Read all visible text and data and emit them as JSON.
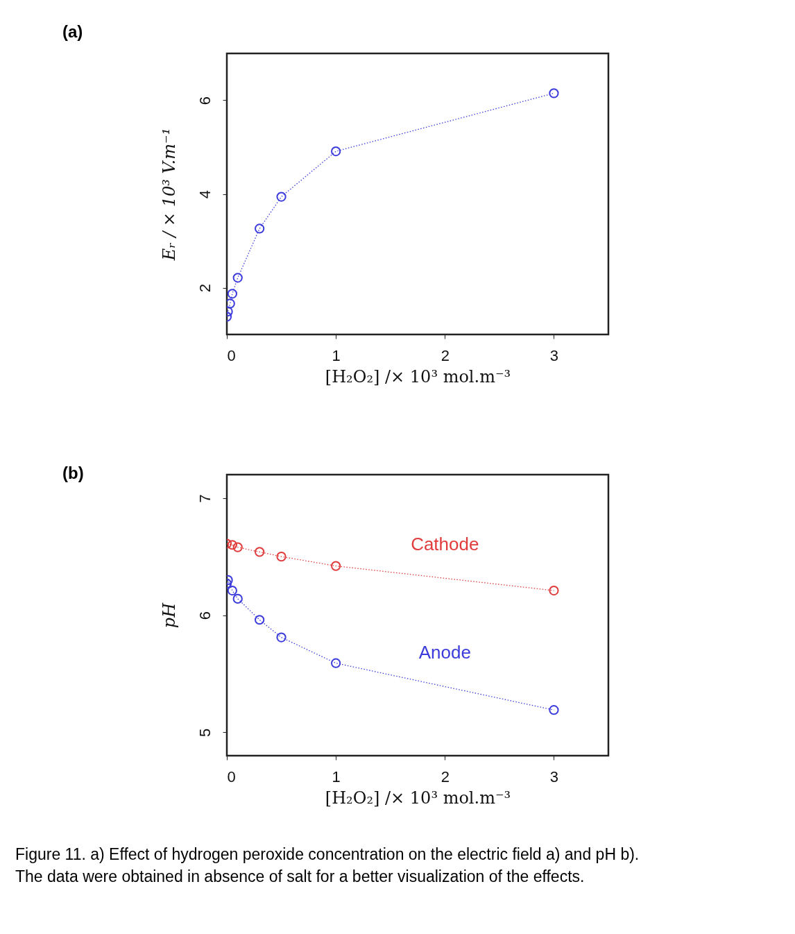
{
  "chart_data": [
    {
      "type": "line",
      "xlabel": "[H₂O₂] /× 10³ mol.m⁻³",
      "ylabel": "Eᵣ / × 10³ V.m⁻¹",
      "annotations": [
        "(a)"
      ],
      "xlim": [
        0,
        3.5
      ],
      "xticks": [
        0,
        1,
        2,
        3
      ],
      "ylim": [
        1,
        7
      ],
      "yticks": [
        2,
        4,
        6
      ],
      "grid": false,
      "marker": "circle",
      "line_style": "dotted",
      "series": [
        {
          "color": "#3c3cdc",
          "x": [
            0,
            0.01,
            0.03,
            0.05,
            0.1,
            0.3,
            0.5,
            1,
            3
          ],
          "values": [
            1.38,
            1.49,
            1.66,
            1.87,
            2.21,
            3.26,
            3.94,
            4.91,
            6.15
          ]
        }
      ]
    },
    {
      "type": "line",
      "xlabel": "[H₂O₂] /× 10³ mol.m⁻³",
      "ylabel": "pH",
      "annotations": [
        "(b)",
        "Figure 11. a) Effect of hydrogen peroxide concentration on the electric field a) and pH b). The data were obtained in absence of salt for a better visualization of the effects."
      ],
      "xlim": [
        0,
        3.5
      ],
      "xticks": [
        0,
        1,
        2,
        3
      ],
      "ylim": [
        4.8,
        7.2
      ],
      "yticks": [
        5,
        6,
        7
      ],
      "grid": false,
      "marker": "circle",
      "line_style": "dotted",
      "series": [
        {
          "name": "Cathode",
          "color": "#e03c3c",
          "x": [
            0,
            0.05,
            0.1,
            0.3,
            0.5,
            1,
            3
          ],
          "values": [
            6.61,
            6.6,
            6.58,
            6.54,
            6.5,
            6.42,
            6.21
          ]
        },
        {
          "name": "Anode",
          "color": "#3c3cdc",
          "x": [
            0,
            0.01,
            0.05,
            0.1,
            0.3,
            0.5,
            1,
            3
          ],
          "values": [
            6.27,
            6.3,
            6.21,
            6.14,
            5.96,
            5.81,
            5.59,
            5.19
          ]
        }
      ]
    }
  ]
}
